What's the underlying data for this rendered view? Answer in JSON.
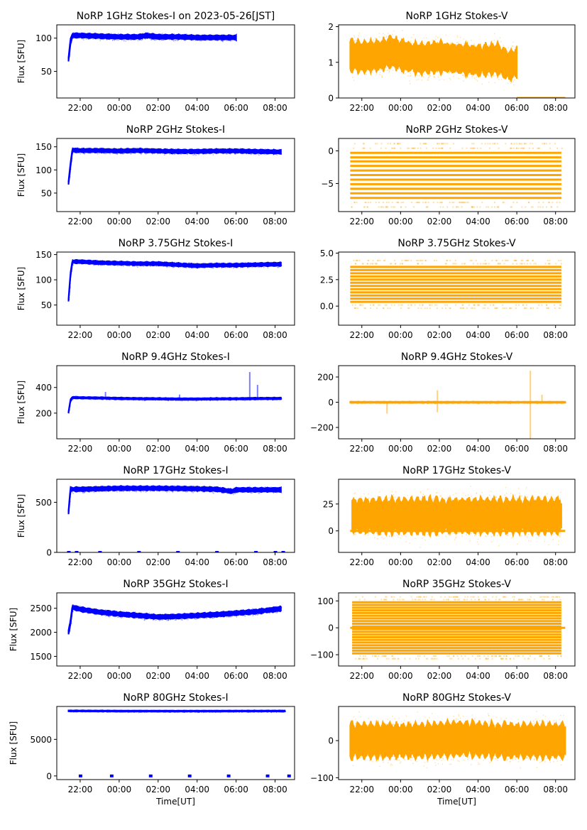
{
  "figure": {
    "xlabel": "Time[UT]",
    "ylabel": "Flux [SFU]"
  },
  "colors": {
    "stokes_i": "#0000ff",
    "stokes_v": "#ffa500"
  },
  "chart_data": [
    {
      "type": "scatter",
      "title": "NoRP 1GHz Stokes-I on 2023-05-26[JST]",
      "ylabel": "Flux [SFU]",
      "xlabel": "",
      "color": "#0000ff",
      "xlim": [
        -3.2,
        9.0
      ],
      "x_ticks": [
        -2,
        0,
        2,
        4,
        6,
        8
      ],
      "x_tick_labels": [
        "22:00",
        "00:00",
        "02:00",
        "04:00",
        "06:00",
        "08:00"
      ],
      "ylim": [
        10,
        120
      ],
      "y_ticks": [
        50,
        100
      ],
      "y_tick_labels": [
        "50",
        "100"
      ],
      "series": [
        {
          "name": "Stokes-I",
          "x": [
            -2.6,
            -2.5,
            -2.4,
            -2.0,
            -1.0,
            0,
            1.0,
            1.4,
            2,
            3,
            4,
            5,
            6.0
          ],
          "y": [
            68,
            95,
            104,
            104,
            103,
            102,
            102,
            104,
            102,
            102,
            101,
            101,
            101
          ],
          "spread": 4
        }
      ]
    },
    {
      "type": "scatter",
      "title": "NoRP 1GHz Stokes-V",
      "ylabel": "",
      "xlabel": "",
      "color": "#ffa500",
      "xlim": [
        -3.2,
        9.0
      ],
      "x_ticks": [
        -2,
        0,
        2,
        4,
        6,
        8
      ],
      "x_tick_labels": [
        "22:00",
        "00:00",
        "02:00",
        "04:00",
        "06:00",
        "08:00"
      ],
      "ylim": [
        0,
        2.05
      ],
      "y_ticks": [
        0,
        1,
        2
      ],
      "y_tick_labels": [
        "0",
        "1",
        "2"
      ],
      "series": [
        {
          "name": "Stokes-V",
          "x": [
            -2.6,
            -2,
            -1,
            -0.5,
            0,
            1,
            2,
            3,
            4,
            5,
            5.6,
            6.0
          ],
          "y": [
            1.2,
            1.15,
            1.2,
            1.3,
            1.2,
            1.1,
            1.15,
            1.1,
            1.05,
            1.1,
            0.9,
            1.0
          ],
          "spread": 0.5
        },
        {
          "name": "Stokes-V zero",
          "x": [
            6.0,
            6.5,
            7,
            7.5,
            8,
            8.5
          ],
          "y": [
            0,
            0,
            0,
            0,
            0,
            0
          ],
          "spread": 0
        }
      ]
    },
    {
      "type": "scatter",
      "title": "NoRP 2GHz Stokes-I",
      "ylabel": "Flux [SFU]",
      "xlabel": "",
      "color": "#0000ff",
      "xlim": [
        -3.2,
        9.0
      ],
      "x_ticks": [
        -2,
        0,
        2,
        4,
        6,
        8
      ],
      "x_tick_labels": [
        "22:00",
        "00:00",
        "02:00",
        "04:00",
        "06:00",
        "08:00"
      ],
      "ylim": [
        10,
        168
      ],
      "y_ticks": [
        50,
        100,
        150
      ],
      "y_tick_labels": [
        "50",
        "100",
        "150"
      ],
      "series": [
        {
          "name": "Stokes-I",
          "x": [
            -2.6,
            -2.5,
            -2.4,
            -2,
            -1,
            0,
            1,
            2,
            3,
            4,
            5,
            6,
            7,
            8.3
          ],
          "y": [
            72,
            110,
            143,
            142,
            142,
            141,
            142,
            141,
            140,
            140,
            141,
            141,
            140,
            139
          ],
          "spread": 5
        }
      ]
    },
    {
      "type": "scatter",
      "title": "NoRP 2GHz Stokes-V",
      "ylabel": "",
      "xlabel": "",
      "color": "#ffa500",
      "xlim": [
        -3.2,
        9.0
      ],
      "x_ticks": [
        -2,
        0,
        2,
        4,
        6,
        8
      ],
      "x_tick_labels": [
        "22:00",
        "00:00",
        "02:00",
        "04:00",
        "06:00",
        "08:00"
      ],
      "ylim": [
        -9.3,
        1.9
      ],
      "y_ticks": [
        -5,
        0
      ],
      "y_tick_labels": [
        "−5",
        "0"
      ],
      "bands": [
        -0.3,
        -1.0,
        -1.6,
        -2.3,
        -3.0,
        -3.7,
        -4.4,
        -5.1,
        -5.8,
        -6.5,
        -7.2
      ],
      "series": [
        {
          "name": "Stokes-V",
          "x": [
            -2.6,
            8.3
          ],
          "y": [
            -4,
            -4
          ],
          "spread": 4
        }
      ]
    },
    {
      "type": "scatter",
      "title": "NoRP 3.75GHz Stokes-I",
      "ylabel": "Flux [SFU]",
      "xlabel": "",
      "color": "#0000ff",
      "xlim": [
        -3.2,
        9.0
      ],
      "x_ticks": [
        -2,
        0,
        2,
        4,
        6,
        8
      ],
      "x_tick_labels": [
        "22:00",
        "00:00",
        "02:00",
        "04:00",
        "06:00",
        "08:00"
      ],
      "ylim": [
        10,
        155
      ],
      "y_ticks": [
        50,
        100,
        150
      ],
      "y_tick_labels": [
        "50",
        "100",
        "150"
      ],
      "series": [
        {
          "name": "Stokes-I",
          "x": [
            -2.6,
            -2.5,
            -2.4,
            -2,
            -1,
            0,
            1,
            2,
            3,
            4,
            5,
            6,
            7,
            8.3
          ],
          "y": [
            60,
            110,
            136,
            136,
            134,
            133,
            132,
            132,
            130,
            128,
            129,
            129,
            130,
            131
          ],
          "spread": 4
        }
      ]
    },
    {
      "type": "scatter",
      "title": "NoRP 3.75GHz Stokes-V",
      "ylabel": "",
      "xlabel": "",
      "color": "#ffa500",
      "xlim": [
        -3.2,
        9.0
      ],
      "x_ticks": [
        -2,
        0,
        2,
        4,
        6,
        8
      ],
      "x_tick_labels": [
        "22:00",
        "00:00",
        "02:00",
        "04:00",
        "06:00",
        "08:00"
      ],
      "ylim": [
        -1.8,
        5.1
      ],
      "y_ticks": [
        0.0,
        2.5,
        5.0
      ],
      "y_tick_labels": [
        "0.0",
        "2.5",
        "5.0"
      ],
      "bands": [
        0.4,
        0.7,
        1.0,
        1.3,
        1.6,
        1.9,
        2.2,
        2.5,
        2.8,
        3.1,
        3.4,
        3.7
      ],
      "series": [
        {
          "name": "Stokes-V",
          "x": [
            -2.6,
            8.3
          ],
          "y": [
            2,
            2
          ],
          "spread": 2
        }
      ]
    },
    {
      "type": "scatter",
      "title": "NoRP 9.4GHz Stokes-I",
      "ylabel": "Flux [SFU]",
      "xlabel": "",
      "color": "#0000ff",
      "xlim": [
        -3.2,
        9.0
      ],
      "x_ticks": [
        -2,
        0,
        2,
        4,
        6,
        8
      ],
      "x_tick_labels": [
        "22:00",
        "00:00",
        "02:00",
        "04:00",
        "06:00",
        "08:00"
      ],
      "ylim": [
        0,
        570
      ],
      "y_ticks": [
        200,
        400
      ],
      "y_tick_labels": [
        "200",
        "400"
      ],
      "series": [
        {
          "name": "Stokes-I",
          "x": [
            -2.6,
            -2.5,
            -2.4,
            -2,
            -1,
            0,
            1,
            2,
            3,
            4,
            5,
            6,
            7,
            8.3
          ],
          "y": [
            205,
            300,
            322,
            320,
            318,
            315,
            313,
            312,
            310,
            310,
            312,
            312,
            314,
            315
          ],
          "spread": 8
        }
      ],
      "spikes": [
        {
          "x": -0.7,
          "y": 365
        },
        {
          "x": 3.1,
          "y": 345
        },
        {
          "x": 6.7,
          "y": 520
        },
        {
          "x": 7.1,
          "y": 420
        }
      ]
    },
    {
      "type": "scatter",
      "title": "NoRP 9.4GHz Stokes-V",
      "ylabel": "",
      "xlabel": "",
      "color": "#ffa500",
      "xlim": [
        -3.2,
        9.0
      ],
      "x_ticks": [
        -2,
        0,
        2,
        4,
        6,
        8
      ],
      "x_tick_labels": [
        "22:00",
        "00:00",
        "02:00",
        "04:00",
        "06:00",
        "08:00"
      ],
      "ylim": [
        -290,
        290
      ],
      "y_ticks": [
        -200,
        0,
        200
      ],
      "y_tick_labels": [
        "−200",
        "0",
        "200"
      ],
      "series": [
        {
          "name": "Stokes-V",
          "x": [
            -2.6,
            8.5
          ],
          "y": [
            0,
            0
          ],
          "spread": 6
        }
      ],
      "spikes": [
        {
          "x": -0.7,
          "y": -90
        },
        {
          "x": 1.9,
          "y": 95
        },
        {
          "x": 1.9,
          "y": -80
        },
        {
          "x": 6.7,
          "y": -290
        },
        {
          "x": 6.7,
          "y": 250
        },
        {
          "x": 7.3,
          "y": 60
        }
      ]
    },
    {
      "type": "scatter",
      "title": "NoRP 17GHz Stokes-I",
      "ylabel": "Flux [SFU]",
      "xlabel": "",
      "color": "#0000ff",
      "xlim": [
        -3.2,
        9.0
      ],
      "x_ticks": [
        -2,
        0,
        2,
        4,
        6,
        8
      ],
      "x_tick_labels": [
        "22:00",
        "00:00",
        "02:00",
        "04:00",
        "06:00",
        "08:00"
      ],
      "ylim": [
        0,
        730
      ],
      "y_ticks": [
        0,
        500
      ],
      "y_tick_labels": [
        "0",
        "500"
      ],
      "series": [
        {
          "name": "Stokes-I",
          "x": [
            -2.6,
            -2.5,
            -2,
            -1,
            0,
            1,
            2,
            3,
            4,
            5,
            5.8,
            6,
            7,
            8.3
          ],
          "y": [
            400,
            630,
            630,
            635,
            640,
            640,
            640,
            638,
            635,
            630,
            610,
            625,
            625,
            625
          ],
          "spread": 25
        }
      ],
      "zero_points": [
        -2.6,
        -2.2,
        -1.0,
        1.0,
        3.0,
        5.0,
        7.0,
        8.0,
        8.4
      ]
    },
    {
      "type": "scatter",
      "title": "NoRP 17GHz Stokes-V",
      "ylabel": "",
      "xlabel": "",
      "color": "#ffa500",
      "xlim": [
        -3.2,
        9.0
      ],
      "x_ticks": [
        -2,
        0,
        2,
        4,
        6,
        8
      ],
      "x_tick_labels": [
        "22:00",
        "00:00",
        "02:00",
        "04:00",
        "06:00",
        "08:00"
      ],
      "ylim": [
        -20,
        48
      ],
      "y_ticks": [
        0,
        25
      ],
      "y_tick_labels": [
        "0",
        "25"
      ],
      "series": [
        {
          "name": "Stokes-V",
          "x": [
            -2.5,
            8.3
          ],
          "y": [
            14,
            14
          ],
          "spread": 19
        }
      ],
      "zero_line": [
        -2.6,
        8.5
      ]
    },
    {
      "type": "scatter",
      "title": "NoRP 35GHz Stokes-I",
      "ylabel": "Flux [SFU]",
      "xlabel": "",
      "color": "#0000ff",
      "xlim": [
        -3.2,
        9.0
      ],
      "x_ticks": [
        -2,
        0,
        2,
        4,
        6,
        8
      ],
      "x_tick_labels": [
        "22:00",
        "00:00",
        "02:00",
        "04:00",
        "06:00",
        "08:00"
      ],
      "ylim": [
        1300,
        2820
      ],
      "y_ticks": [
        1500,
        2000,
        2500
      ],
      "y_tick_labels": [
        "1500",
        "2000",
        "2500"
      ],
      "series": [
        {
          "name": "Stokes-I",
          "x": [
            -2.6,
            -2.5,
            -2.4,
            -2,
            -1,
            0,
            1,
            2,
            3,
            4,
            5,
            6,
            7,
            8.3
          ],
          "y": [
            2000,
            2200,
            2520,
            2480,
            2420,
            2380,
            2350,
            2320,
            2330,
            2350,
            2370,
            2400,
            2430,
            2490
          ],
          "spread": 55
        }
      ]
    },
    {
      "type": "scatter",
      "title": "NoRP 35GHz Stokes-V",
      "ylabel": "",
      "xlabel": "",
      "color": "#ffa500",
      "xlim": [
        -3.2,
        9.0
      ],
      "x_ticks": [
        -2,
        0,
        2,
        4,
        6,
        8
      ],
      "x_tick_labels": [
        "22:00",
        "00:00",
        "02:00",
        "04:00",
        "06:00",
        "08:00"
      ],
      "ylim": [
        -142,
        130
      ],
      "y_ticks": [
        -100,
        0,
        100
      ],
      "y_tick_labels": [
        "−100",
        "0",
        "100"
      ],
      "bands": [
        -95,
        -85,
        -75,
        -65,
        -55,
        -45,
        -35,
        -25,
        -15,
        -5,
        5,
        15,
        25,
        35,
        45,
        55,
        65,
        75,
        85,
        95
      ],
      "series": [
        {
          "name": "Stokes-V",
          "x": [
            -2.5,
            8.3
          ],
          "y": [
            0,
            0
          ],
          "spread": 100
        }
      ],
      "zero_line": [
        -2.6,
        8.5
      ]
    },
    {
      "type": "scatter",
      "title": "NoRP 80GHz Stokes-I",
      "ylabel": "Flux [SFU]",
      "xlabel": "Time[UT]",
      "color": "#0000ff",
      "xlim": [
        -3.2,
        9.0
      ],
      "x_ticks": [
        -2,
        0,
        2,
        4,
        6,
        8
      ],
      "x_tick_labels": [
        "22:00",
        "00:00",
        "02:00",
        "04:00",
        "06:00",
        "08:00"
      ],
      "ylim": [
        -500,
        9500
      ],
      "y_ticks": [
        0,
        5000
      ],
      "y_tick_labels": [
        "0",
        "5000"
      ],
      "series": [
        {
          "name": "Stokes-I",
          "x": [
            -2.6,
            0,
            2,
            4,
            6,
            8.5
          ],
          "y": [
            8900,
            8880,
            8870,
            8870,
            8880,
            8890
          ],
          "spread": 90
        }
      ],
      "zero_points": [
        -2.0,
        -0.4,
        1.6,
        3.6,
        5.6,
        7.6,
        8.7
      ]
    },
    {
      "type": "scatter",
      "title": "NoRP 80GHz Stokes-V",
      "ylabel": "",
      "xlabel": "Time[UT]",
      "color": "#ffa500",
      "xlim": [
        -3.2,
        9.0
      ],
      "x_ticks": [
        -2,
        0,
        2,
        4,
        6,
        8
      ],
      "x_tick_labels": [
        "22:00",
        "00:00",
        "02:00",
        "04:00",
        "06:00",
        "08:00"
      ],
      "ylim": [
        -105,
        92
      ],
      "y_ticks": [
        -100,
        0
      ],
      "y_tick_labels": [
        "−100",
        "0"
      ],
      "series": [
        {
          "name": "Stokes-V",
          "x": [
            -2.6,
            -1,
            1,
            3,
            3.5,
            5,
            7,
            8.5
          ],
          "y": [
            0,
            0,
            0,
            5,
            5,
            0,
            0,
            0
          ],
          "spread": 55
        }
      ]
    }
  ]
}
